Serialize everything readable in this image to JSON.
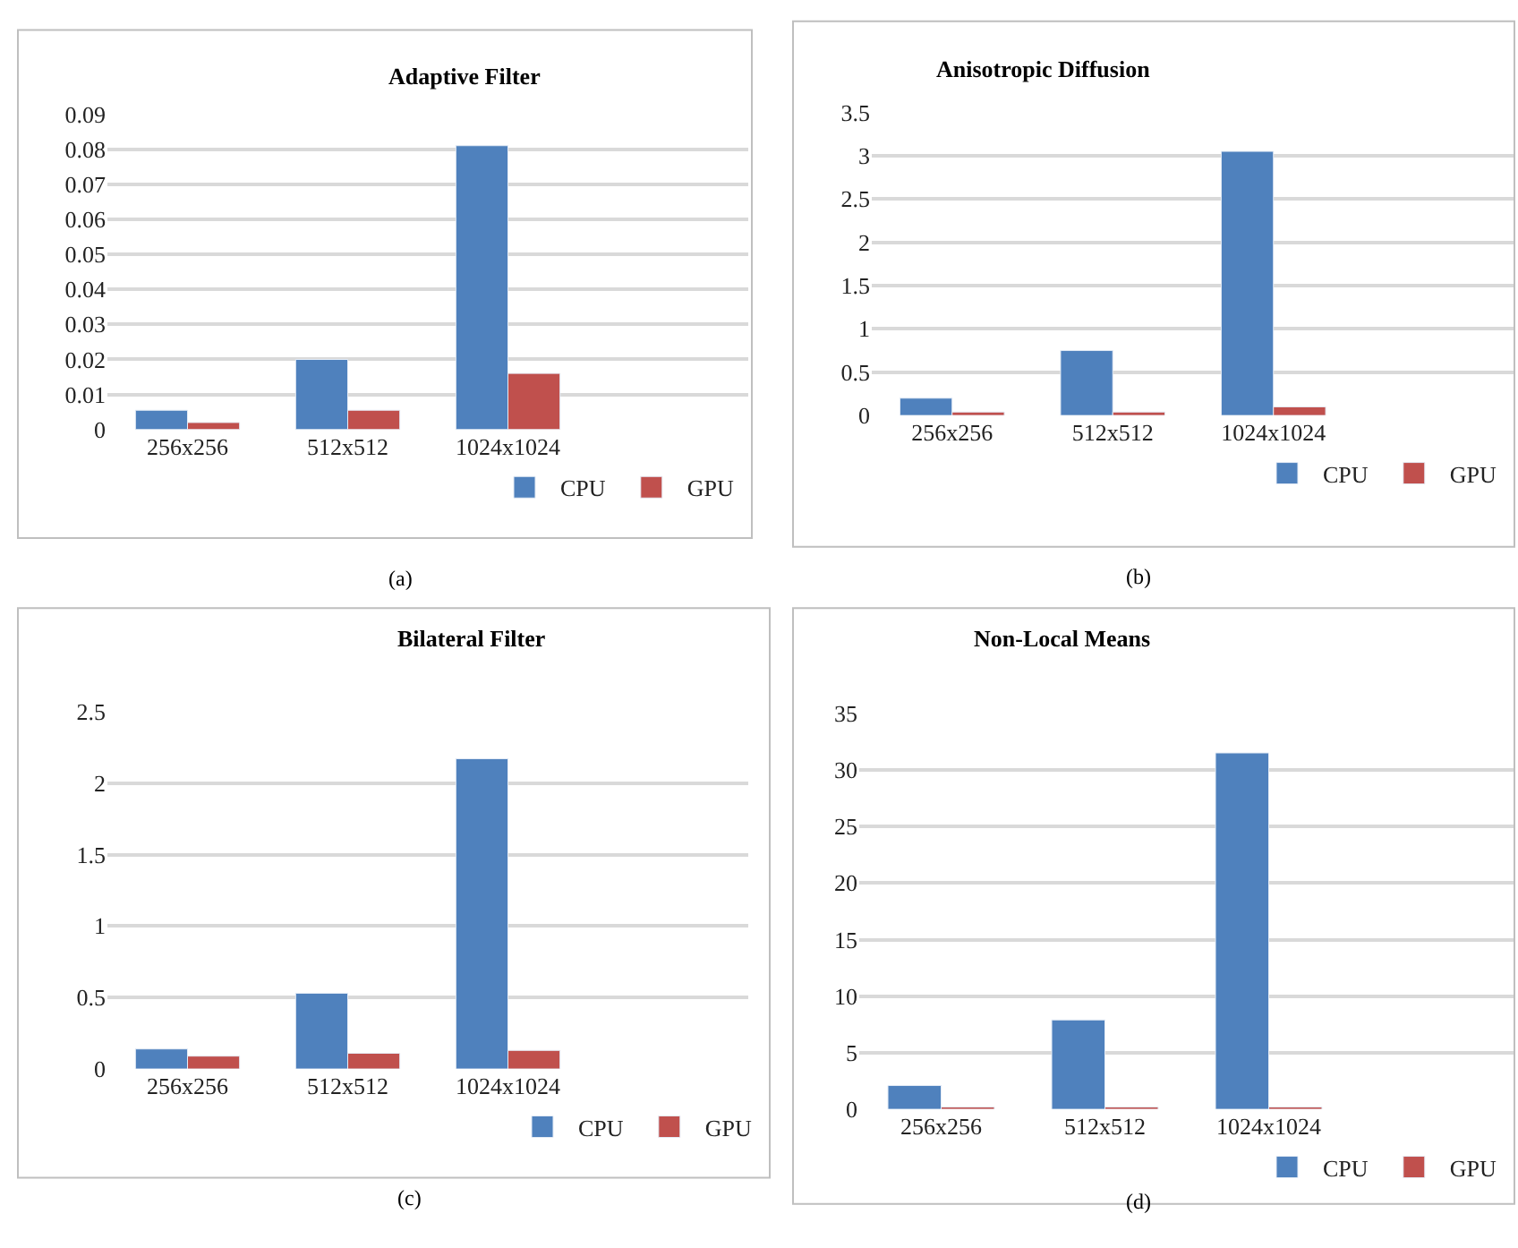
{
  "chart_data": [
    {
      "type": "bar",
      "title": "Adaptive Filter",
      "categories": [
        "256x256",
        "512x512",
        "1024x1024",
        null
      ],
      "series": [
        {
          "name": "CPU",
          "color": "#4f81bd",
          "values": [
            0.0055,
            0.02,
            0.081,
            null
          ]
        },
        {
          "name": "GPU",
          "color": "#c0504d",
          "values": [
            0.002,
            0.0055,
            0.016,
            null
          ]
        }
      ],
      "ylim": [
        0,
        0.09
      ],
      "yticks": [
        0,
        0.01,
        0.02,
        0.03,
        0.04,
        0.05,
        0.06,
        0.07,
        0.08,
        0.09
      ],
      "grid": "y",
      "legend": "bottom right",
      "annotations": [
        "(a)"
      ]
    },
    {
      "type": "bar",
      "title": "Anisotropic Diffusion",
      "categories": [
        "256x256",
        "512x512",
        "1024x1024",
        null
      ],
      "series": [
        {
          "name": "CPU",
          "color": "#4f81bd",
          "values": [
            0.2,
            0.75,
            3.05,
            null
          ]
        },
        {
          "name": "GPU",
          "color": "#c0504d",
          "values": [
            0.04,
            0.04,
            0.1,
            null
          ]
        }
      ],
      "ylim": [
        0,
        3.5
      ],
      "yticks": [
        0,
        0.5,
        1,
        1.5,
        2,
        2.5,
        3,
        3.5
      ],
      "grid": "y",
      "legend": "bottom right",
      "annotations": [
        "(b)"
      ]
    },
    {
      "type": "bar",
      "title": "Bilateral Filter",
      "categories": [
        "256x256",
        "512x512",
        "1024x1024",
        null
      ],
      "series": [
        {
          "name": "CPU",
          "color": "#4f81bd",
          "values": [
            0.14,
            0.53,
            2.17,
            null
          ]
        },
        {
          "name": "GPU",
          "color": "#c0504d",
          "values": [
            0.09,
            0.11,
            0.13,
            null
          ]
        }
      ],
      "ylim": [
        0,
        2.5
      ],
      "yticks": [
        0,
        0.5,
        1,
        1.5,
        2,
        2.5
      ],
      "grid": "y",
      "legend": "bottom right",
      "annotations": [
        "(c)"
      ]
    },
    {
      "type": "bar",
      "title": "Non-Local Means",
      "categories": [
        "256x256",
        "512x512",
        "1024x1024",
        null
      ],
      "series": [
        {
          "name": "CPU",
          "color": "#4f81bd",
          "values": [
            2.1,
            7.9,
            31.5,
            null
          ]
        },
        {
          "name": "GPU",
          "color": "#c0504d",
          "values": [
            0.2,
            0.2,
            0.2,
            null
          ]
        }
      ],
      "ylim": [
        0,
        35
      ],
      "yticks": [
        0,
        5,
        10,
        15,
        20,
        25,
        30,
        35
      ],
      "grid": "y",
      "legend": "bottom right",
      "annotations": [
        "(d)"
      ]
    }
  ]
}
